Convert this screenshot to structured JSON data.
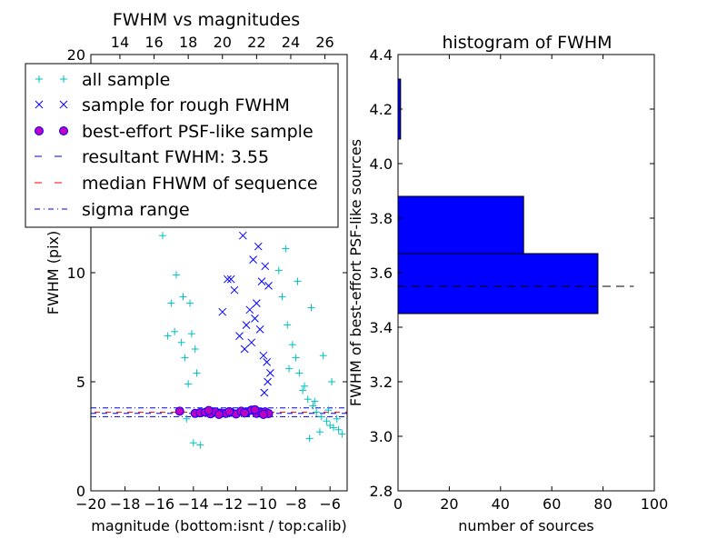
{
  "colors": {
    "all_sample": "#00bfbf",
    "rough_sample": "#0000ff",
    "psf_fill": "#bf00bf",
    "psf_edge": "#0000ff",
    "resultant": "#0000ff",
    "median": "#ff0000",
    "sigma": "#0000ff",
    "bars": "#0000ff"
  },
  "chart_data": [
    {
      "type": "scatter",
      "title": "FWHM vs magnitudes",
      "xlabel": "magnitude (bottom:isnt / top:calib)",
      "ylabel": "FWHM (pix)",
      "xlim": [
        -20,
        -5
      ],
      "ylim": [
        0,
        20
      ],
      "x_ticks": [
        "−20",
        "−18",
        "−16",
        "−14",
        "−12",
        "−10",
        "−8",
        "−6"
      ],
      "x_tick_values": [
        -20,
        -18,
        -16,
        -14,
        -12,
        -10,
        -8,
        -6
      ],
      "y_ticks": [
        "0",
        "5",
        "10",
        "20"
      ],
      "y_tick_values": [
        0,
        5,
        10,
        20
      ],
      "top_ticks": [
        "14",
        "16",
        "18",
        "20",
        "22",
        "24",
        "26"
      ],
      "top_tick_values": [
        -18.3,
        -16.3,
        -14.3,
        -12.3,
        -10.3,
        -8.3,
        -6.3
      ],
      "legend": {
        "placement": "upper-left",
        "entries": [
          {
            "label": "all sample",
            "marker": "plus"
          },
          {
            "label": "sample for rough FWHM",
            "marker": "x"
          },
          {
            "label": "best-effort PSF-like sample",
            "marker": "circle"
          },
          {
            "label": "resultant FWHM: 3.55",
            "marker": "dashed"
          },
          {
            "label": "median FHWM of sequence",
            "marker": "dashed-red"
          },
          {
            "label": "sigma range",
            "marker": "dashdot"
          }
        ]
      },
      "series": [
        {
          "name": "all sample",
          "x": [
            -15.8,
            -15.5,
            -15.3,
            -15.0,
            -14.7,
            -14.5,
            -14.3,
            -14.2,
            -14.1,
            -13.9,
            -13.8,
            -14.4,
            -14.0,
            -13.6,
            -15.1,
            -14.6,
            -9.0,
            -8.8,
            -8.5,
            -8.2,
            -8.0,
            -7.8,
            -7.5,
            -7.3,
            -7.0,
            -6.8,
            -6.5,
            -6.2,
            -6.0,
            -5.8,
            -5.5,
            -5.3,
            -9.2,
            -8.6,
            -7.9,
            -7.1,
            -6.4,
            -5.9,
            -8.4,
            -7.6,
            -6.9,
            -6.1,
            -5.6,
            -7.2,
            -6.6
          ],
          "y": [
            11.7,
            7.1,
            8.6,
            9.9,
            6.8,
            6.1,
            4.9,
            8.6,
            7.2,
            6.5,
            5.4,
            3.3,
            2.2,
            2.1,
            7.3,
            8.9,
            10.1,
            8.9,
            7.6,
            6.7,
            6.1,
            5.4,
            4.8,
            4.2,
            3.9,
            3.6,
            3.4,
            3.2,
            3.0,
            2.9,
            2.8,
            2.6,
            12.4,
            11.1,
            9.6,
            8.4,
            6.2,
            5.0,
            5.6,
            4.6,
            4.1,
            3.7,
            3.3,
            2.4,
            2.7
          ]
        },
        {
          "name": "sample for rough FWHM",
          "x": [
            -12.3,
            -11.5,
            -11.1,
            -10.8,
            -10.5,
            -10.2,
            -10.0,
            -9.8,
            -9.6,
            -11.8,
            -11.3,
            -10.9,
            -10.6,
            -10.3,
            -10.1,
            -9.9,
            -9.7,
            -9.5,
            -11.0,
            -10.4,
            -12.0,
            -11.6,
            -10.7,
            -9.65,
            -9.85
          ],
          "y": [
            8.2,
            13.2,
            11.7,
            12.5,
            10.6,
            11.2,
            9.6,
            10.3,
            9.4,
            9.7,
            7.1,
            7.6,
            6.8,
            8.6,
            7.4,
            6.2,
            5.9,
            5.4,
            6.5,
            7.9,
            9.7,
            9.2,
            8.3,
            5.0,
            4.5
          ]
        },
        {
          "name": "best-effort PSF-like sample",
          "x": [
            -14.8,
            -13.9,
            -13.6,
            -13.3,
            -13.0,
            -12.7,
            -12.4,
            -12.1,
            -11.8,
            -11.5,
            -11.2,
            -10.9,
            -10.6,
            -10.3,
            -10.0,
            -9.8,
            -9.6,
            -13.1,
            -12.5,
            -11.9,
            -11.0,
            -10.4,
            -9.9
          ],
          "y": [
            3.65,
            3.55,
            3.58,
            3.6,
            3.53,
            3.62,
            3.57,
            3.55,
            3.6,
            3.52,
            3.65,
            3.58,
            3.7,
            3.55,
            3.6,
            3.62,
            3.54,
            3.68,
            3.5,
            3.63,
            3.57,
            3.72,
            3.5
          ]
        }
      ],
      "lines": [
        {
          "name": "resultant FWHM: 3.55",
          "y": 3.55,
          "style": "dashed"
        },
        {
          "name": "median FHWM of sequence",
          "y": 3.6,
          "style": "dashed"
        },
        {
          "name": "sigma range",
          "y": [
            3.4,
            3.8
          ],
          "style": "dashdot"
        }
      ]
    },
    {
      "type": "bar",
      "orientation": "horizontal",
      "title": "histogram of FWHM",
      "xlabel": "number of sources",
      "ylabel": "FWHM of best-effort PSF-like sources",
      "xlim": [
        0,
        100
      ],
      "ylim": [
        2.8,
        4.4
      ],
      "x_ticks": [
        "0",
        "20",
        "40",
        "60",
        "80",
        "100"
      ],
      "x_tick_values": [
        0,
        20,
        40,
        60,
        80,
        100
      ],
      "y_ticks": [
        "2.8",
        "3.0",
        "3.2",
        "3.4",
        "3.6",
        "3.8",
        "4.0",
        "4.2",
        "4.4"
      ],
      "y_tick_values": [
        2.8,
        3.0,
        3.2,
        3.4,
        3.6,
        3.8,
        4.0,
        4.2,
        4.4
      ],
      "bins": [
        {
          "from": 3.45,
          "to": 3.67,
          "count": 78
        },
        {
          "from": 3.67,
          "to": 3.88,
          "count": 49
        },
        {
          "from": 4.09,
          "to": 4.31,
          "count": 1
        }
      ],
      "reference_line": {
        "y": 3.55,
        "x_to": 92,
        "style": "dashed"
      }
    }
  ]
}
